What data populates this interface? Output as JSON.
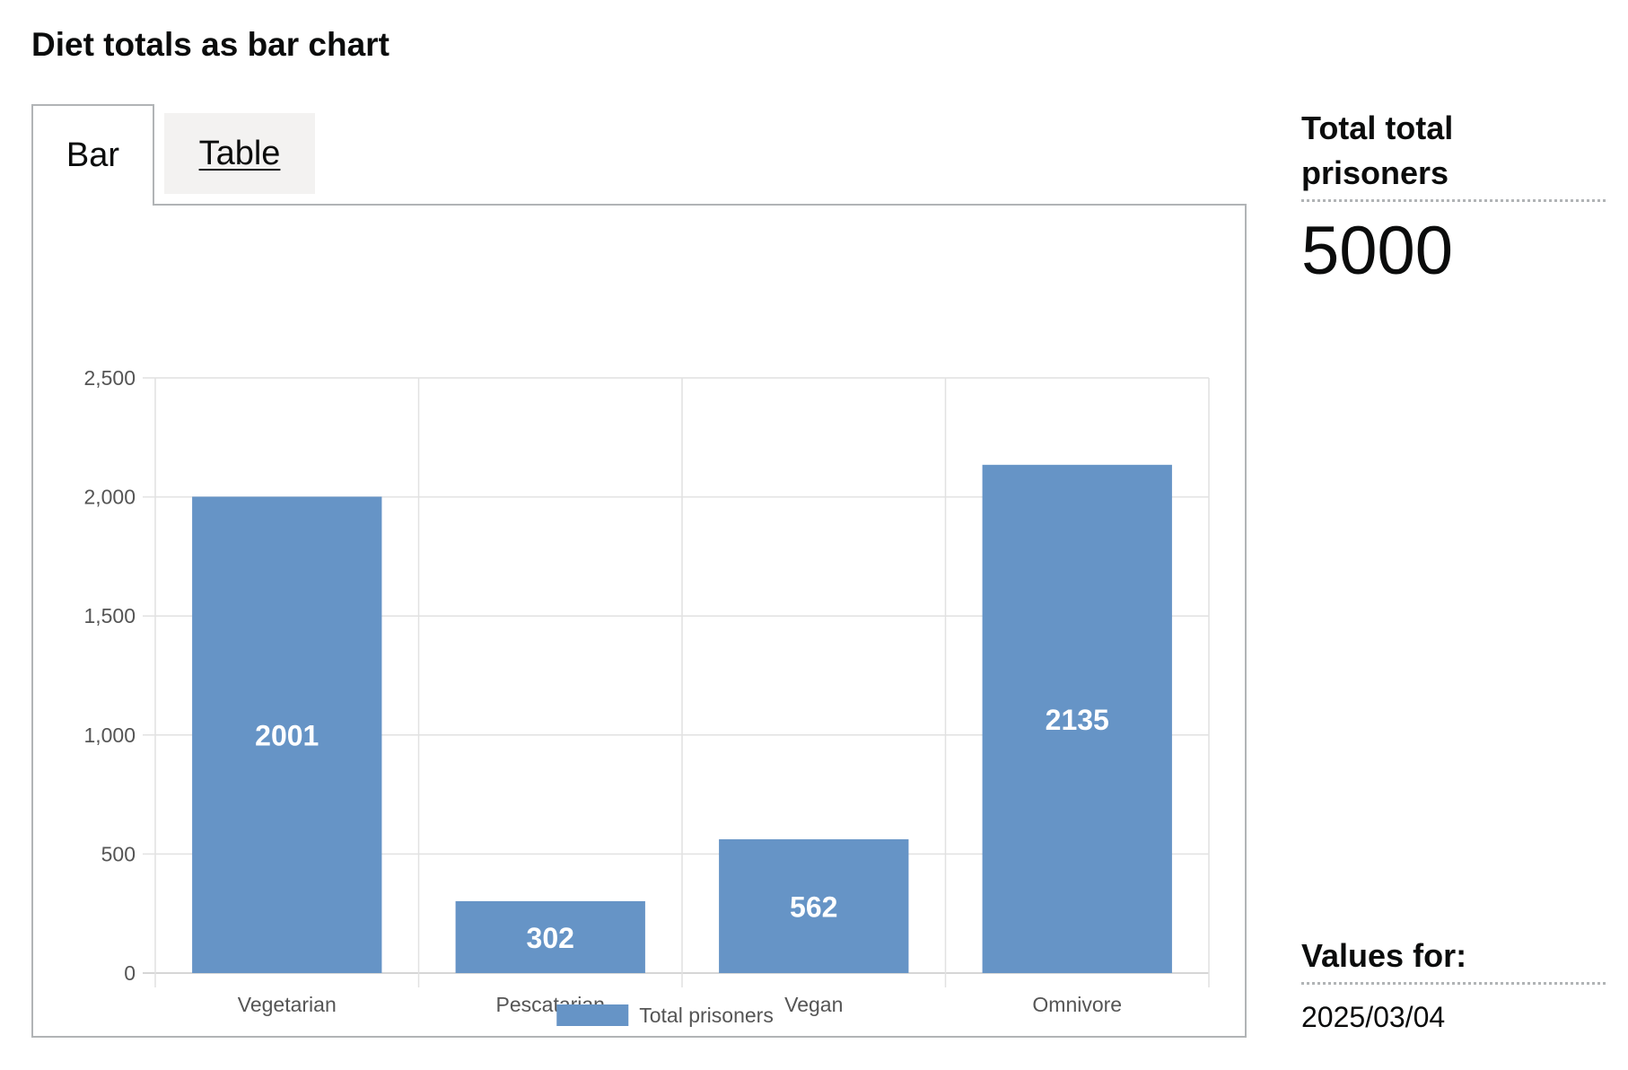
{
  "page": {
    "title": "Diet totals as bar chart"
  },
  "tabs": [
    {
      "label": "Bar",
      "selected": true
    },
    {
      "label": "Table",
      "selected": false
    }
  ],
  "summary": {
    "total_heading": "Total total prisoners",
    "total_value": "5000",
    "values_for_heading": "Values for:",
    "values_for_date": "2025/03/04"
  },
  "colors": {
    "bar": "#6694c6",
    "grid": "#e1e1e1",
    "axis_text": "#555555",
    "bar_label": "#ffffff"
  },
  "chart_data": {
    "type": "bar",
    "categories": [
      "Vegetarian",
      "Pescatarian",
      "Vegan",
      "Omnivore"
    ],
    "series": [
      {
        "name": "Total prisoners",
        "values": [
          2001,
          302,
          562,
          2135
        ]
      }
    ],
    "title": "",
    "xlabel": "",
    "ylabel": "",
    "ylim": [
      0,
      2500
    ],
    "yticks": [
      0,
      500,
      1000,
      1500,
      2000,
      2500
    ],
    "ytick_labels": [
      "0",
      "500",
      "1,000",
      "1,500",
      "2,000",
      "2,500"
    ],
    "data_labels": true,
    "grid": true,
    "legend": "bottom-center"
  }
}
